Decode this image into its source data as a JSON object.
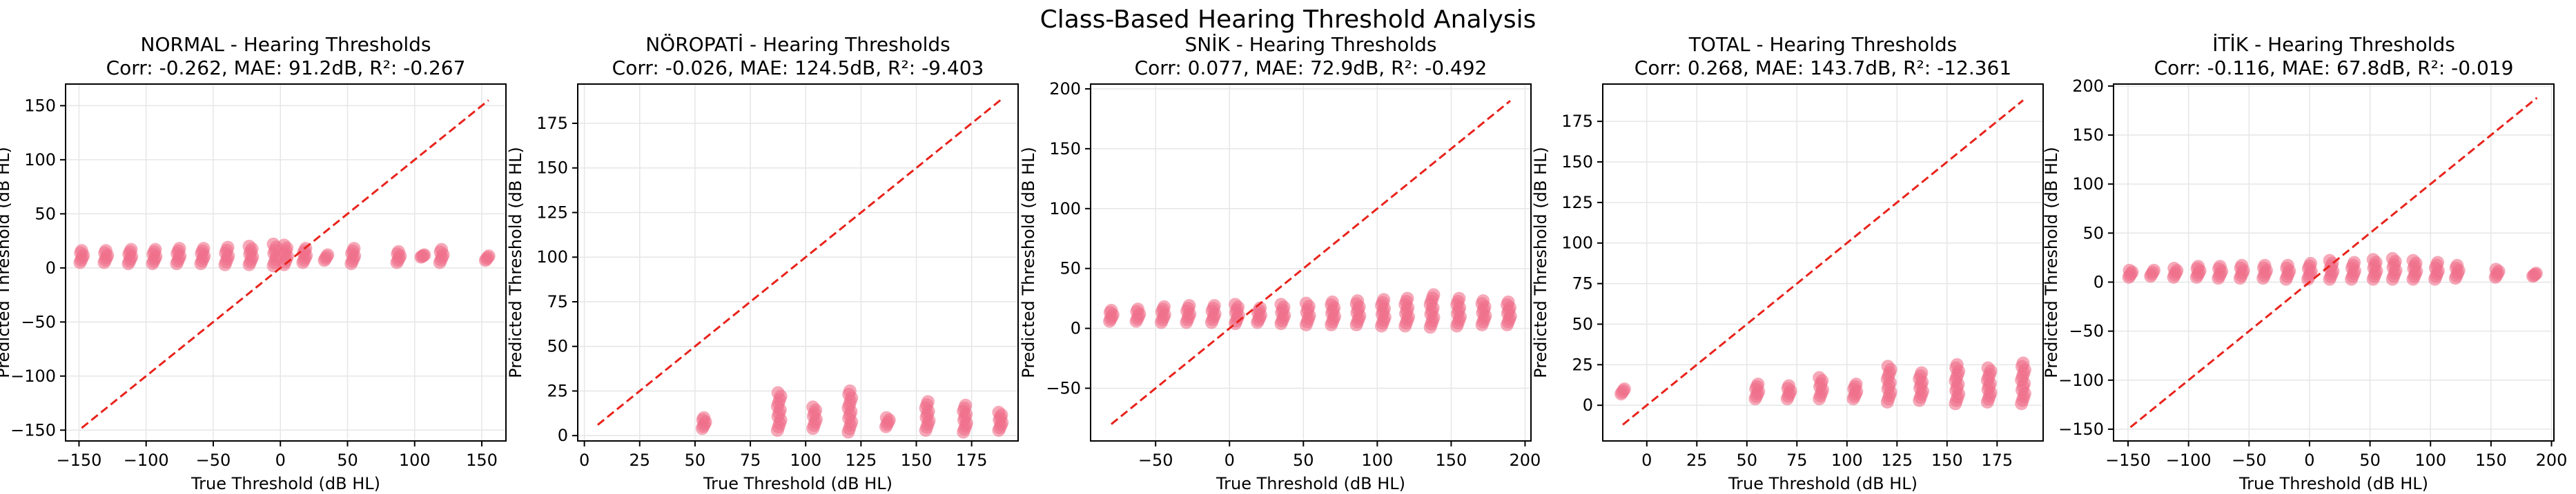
{
  "figure": {
    "suptitle": "Class-Based Hearing Threshold Analysis",
    "colors": {
      "point": "#f0708a",
      "diagonal": "#e8231c",
      "grid": "#e6e6e6"
    }
  },
  "chart_data": [
    {
      "type": "scatter",
      "title": "NORMAL - Hearing Thresholds",
      "subtitle": "Corr: -0.262, MAE: 91.2dB, R²: -0.267",
      "xlabel": "True Threshold (dB HL)",
      "ylabel": "Predicted Threshold (dB HL)",
      "xlim": [
        -160,
        168
      ],
      "ylim": [
        -160,
        170
      ],
      "xticks": [
        -150,
        -100,
        -50,
        0,
        50,
        100,
        150
      ],
      "yticks": [
        -150,
        -100,
        -50,
        0,
        50,
        100,
        150
      ],
      "diagonal": [
        -148,
        155
      ],
      "grid": true,
      "point_groups": [
        {
          "x": -148,
          "y_range": [
            5,
            16
          ]
        },
        {
          "x": -130,
          "y_range": [
            5,
            16
          ]
        },
        {
          "x": -112,
          "y_range": [
            4,
            17
          ]
        },
        {
          "x": -94,
          "y_range": [
            4,
            17
          ]
        },
        {
          "x": -76,
          "y_range": [
            4,
            18
          ]
        },
        {
          "x": -58,
          "y_range": [
            4,
            18
          ]
        },
        {
          "x": -40,
          "y_range": [
            3,
            19
          ]
        },
        {
          "x": -22,
          "y_range": [
            3,
            20
          ]
        },
        {
          "x": -4,
          "y_range": [
            2,
            22
          ]
        },
        {
          "x": 4,
          "y_range": [
            3,
            21
          ]
        },
        {
          "x": 18,
          "y_range": [
            5,
            18
          ]
        },
        {
          "x": 34,
          "y_range": [
            7,
            12
          ]
        },
        {
          "x": 54,
          "y_range": [
            4,
            18
          ]
        },
        {
          "x": 88,
          "y_range": [
            5,
            15
          ]
        },
        {
          "x": 106,
          "y_range": [
            10,
            12
          ]
        },
        {
          "x": 120,
          "y_range": [
            5,
            17
          ]
        },
        {
          "x": 154,
          "y_range": [
            7,
            11
          ]
        }
      ]
    },
    {
      "type": "scatter",
      "title": "NÖROPATİ - Hearing Thresholds",
      "subtitle": "Corr: -0.026, MAE: 124.5dB, R²: -9.403",
      "xlabel": "True Threshold (dB HL)",
      "ylabel": "Predicted Threshold (dB HL)",
      "xlim": [
        -3,
        196
      ],
      "ylim": [
        -3,
        197
      ],
      "xticks": [
        0,
        25,
        50,
        75,
        100,
        125,
        150,
        175
      ],
      "yticks": [
        0,
        25,
        50,
        75,
        100,
        125,
        150,
        175
      ],
      "diagonal": [
        6,
        188
      ],
      "grid": true,
      "point_groups": [
        {
          "x": 54,
          "y_range": [
            4,
            10
          ]
        },
        {
          "x": 88,
          "y_range": [
            3,
            24
          ]
        },
        {
          "x": 104,
          "y_range": [
            4,
            16
          ]
        },
        {
          "x": 120,
          "y_range": [
            2,
            25
          ]
        },
        {
          "x": 137,
          "y_range": [
            5,
            10
          ]
        },
        {
          "x": 155,
          "y_range": [
            3,
            19
          ]
        },
        {
          "x": 172,
          "y_range": [
            2,
            17
          ]
        },
        {
          "x": 188,
          "y_range": [
            3,
            13
          ]
        }
      ]
    },
    {
      "type": "scatter",
      "title": "SNİK - Hearing Thresholds",
      "subtitle": "Corr: 0.077, MAE: 72.9dB, R²: -0.492",
      "xlabel": "True Threshold (dB HL)",
      "ylabel": "Predicted Threshold (dB HL)",
      "xlim": [
        -94,
        204
      ],
      "ylim": [
        -94,
        204
      ],
      "xticks": [
        -50,
        0,
        50,
        100,
        150,
        200
      ],
      "yticks": [
        -50,
        0,
        50,
        100,
        150,
        200
      ],
      "diagonal": [
        -80,
        190
      ],
      "grid": true,
      "point_groups": [
        {
          "x": -80,
          "y_range": [
            6,
            15
          ]
        },
        {
          "x": -62,
          "y_range": [
            6,
            16
          ]
        },
        {
          "x": -45,
          "y_range": [
            5,
            18
          ]
        },
        {
          "x": -28,
          "y_range": [
            5,
            19
          ]
        },
        {
          "x": -11,
          "y_range": [
            5,
            19
          ]
        },
        {
          "x": 5,
          "y_range": [
            4,
            20
          ]
        },
        {
          "x": 20,
          "y_range": [
            5,
            17
          ]
        },
        {
          "x": 36,
          "y_range": [
            4,
            20
          ]
        },
        {
          "x": 53,
          "y_range": [
            3,
            21
          ]
        },
        {
          "x": 70,
          "y_range": [
            3,
            22
          ]
        },
        {
          "x": 87,
          "y_range": [
            3,
            23
          ]
        },
        {
          "x": 104,
          "y_range": [
            2,
            24
          ]
        },
        {
          "x": 120,
          "y_range": [
            2,
            25
          ]
        },
        {
          "x": 137,
          "y_range": [
            1,
            28
          ]
        },
        {
          "x": 155,
          "y_range": [
            2,
            25
          ]
        },
        {
          "x": 172,
          "y_range": [
            3,
            23
          ]
        },
        {
          "x": 189,
          "y_range": [
            3,
            22
          ]
        }
      ]
    },
    {
      "type": "scatter",
      "title": "TOTAL - Hearing Thresholds",
      "subtitle": "Corr: 0.268, MAE: 143.7dB, R²: -12.361",
      "xlabel": "True Threshold (dB HL)",
      "ylabel": "Predicted Threshold (dB HL)",
      "xlim": [
        -22,
        198
      ],
      "ylim": [
        -22,
        198
      ],
      "xticks": [
        0,
        25,
        50,
        75,
        100,
        125,
        150,
        175
      ],
      "yticks": [
        0,
        25,
        50,
        75,
        100,
        125,
        150,
        175
      ],
      "diagonal": [
        -12,
        188
      ],
      "grid": true,
      "point_groups": [
        {
          "x": -12,
          "y_range": [
            7,
            10
          ]
        },
        {
          "x": 55,
          "y_range": [
            4,
            13
          ]
        },
        {
          "x": 71,
          "y_range": [
            4,
            12
          ]
        },
        {
          "x": 87,
          "y_range": [
            4,
            17
          ]
        },
        {
          "x": 104,
          "y_range": [
            4,
            13
          ]
        },
        {
          "x": 121,
          "y_range": [
            2,
            24
          ]
        },
        {
          "x": 137,
          "y_range": [
            3,
            20
          ]
        },
        {
          "x": 155,
          "y_range": [
            1,
            25
          ]
        },
        {
          "x": 171,
          "y_range": [
            2,
            23
          ]
        },
        {
          "x": 188,
          "y_range": [
            1,
            26
          ]
        }
      ]
    },
    {
      "type": "scatter",
      "title": "İTİK - Hearing Thresholds",
      "subtitle": "Corr: -0.116, MAE: 67.8dB, R²: -0.019",
      "xlabel": "True Threshold (dB HL)",
      "ylabel": "Predicted Threshold (dB HL)",
      "xlim": [
        -162,
        202
      ],
      "ylim": [
        -162,
        202
      ],
      "xticks": [
        -150,
        -100,
        -50,
        0,
        50,
        100,
        150,
        200
      ],
      "yticks": [
        -150,
        -100,
        -50,
        0,
        50,
        100,
        150,
        200
      ],
      "diagonal": [
        -148,
        188
      ],
      "grid": true,
      "point_groups": [
        {
          "x": -148,
          "y_range": [
            5,
            12
          ]
        },
        {
          "x": -130,
          "y_range": [
            6,
            12
          ]
        },
        {
          "x": -111,
          "y_range": [
            5,
            14
          ]
        },
        {
          "x": -92,
          "y_range": [
            5,
            16
          ]
        },
        {
          "x": -74,
          "y_range": [
            4,
            16
          ]
        },
        {
          "x": -56,
          "y_range": [
            4,
            17
          ]
        },
        {
          "x": -37,
          "y_range": [
            4,
            17
          ]
        },
        {
          "x": -18,
          "y_range": [
            3,
            17
          ]
        },
        {
          "x": 0,
          "y_range": [
            3,
            19
          ]
        },
        {
          "x": 18,
          "y_range": [
            3,
            22
          ]
        },
        {
          "x": 36,
          "y_range": [
            3,
            20
          ]
        },
        {
          "x": 54,
          "y_range": [
            3,
            23
          ]
        },
        {
          "x": 70,
          "y_range": [
            3,
            24
          ]
        },
        {
          "x": 87,
          "y_range": [
            3,
            22
          ]
        },
        {
          "x": 105,
          "y_range": [
            3,
            20
          ]
        },
        {
          "x": 122,
          "y_range": [
            4,
            17
          ]
        },
        {
          "x": 155,
          "y_range": [
            5,
            13
          ]
        },
        {
          "x": 186,
          "y_range": [
            6,
            9
          ]
        }
      ]
    }
  ]
}
